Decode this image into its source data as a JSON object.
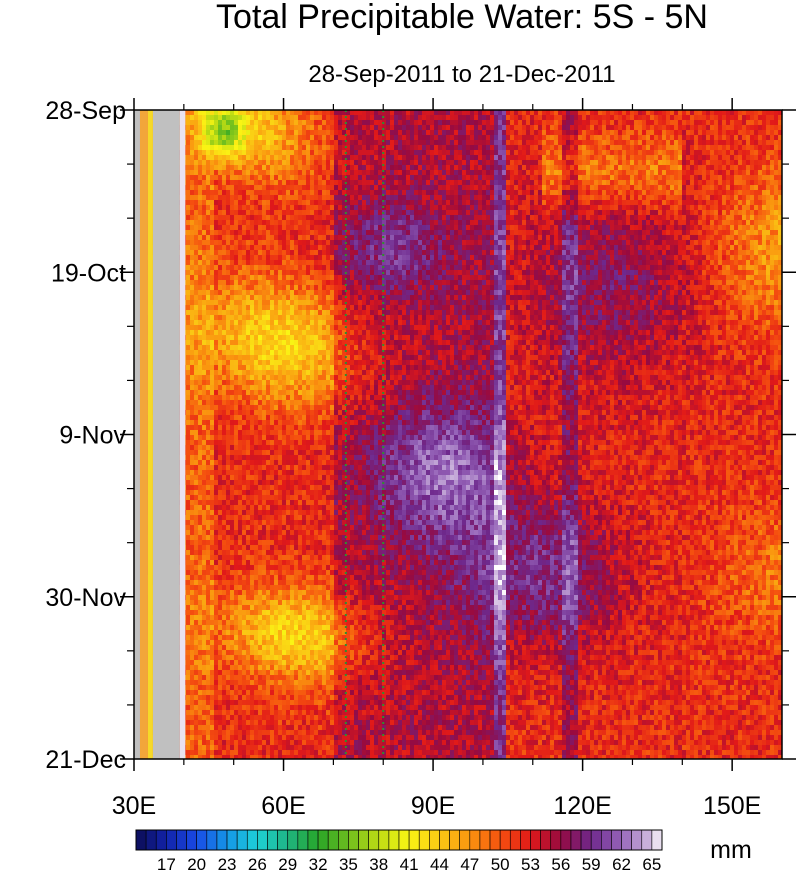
{
  "chart_data": {
    "type": "heatmap",
    "title": "Total Precipitable Water: 5S - 5N",
    "subtitle": "28-Sep-2011 to 21-Dec-2011",
    "x_axis": {
      "range": [
        30,
        160
      ],
      "units": "degrees longitude",
      "ticks": [
        30,
        60,
        90,
        120,
        150
      ],
      "tick_labels": [
        "30E",
        "60E",
        "90E",
        "120E",
        "150E"
      ]
    },
    "y_axis": {
      "range_days": [
        0,
        84
      ],
      "direction": "time increases downward",
      "ticks": [
        0,
        21,
        42,
        63,
        84
      ],
      "tick_labels": [
        "28-Sep",
        "19-Oct",
        "9-Nov",
        "30-Nov",
        "21-Dec"
      ]
    },
    "colorbar": {
      "units": "mm",
      "levels": [
        17,
        20,
        23,
        26,
        29,
        32,
        35,
        38,
        41,
        44,
        47,
        50,
        53,
        56,
        59,
        62,
        65
      ],
      "min": 14,
      "max": 66
    },
    "reference_lines": [
      {
        "longitude": 72.5,
        "style": "dotted",
        "color": "#2f8f2f"
      },
      {
        "longitude": 80,
        "style": "dotted",
        "color": "#2f8f2f"
      }
    ],
    "missing_land_band": {
      "lon_start": 33.8,
      "lon_end": 39.2,
      "color": "#c0c0c0"
    },
    "data_description": "Hovmoller of daily precipitable water averaged 5S-5N; 30-40E mostly land/missing; values ~45-65 mm elsewhere with eastward-propagating moist (purple) episodes and drier (yellow) phases near 40-70E"
  },
  "colors": {
    "background": "#ffffff",
    "missing": "#c0c0c0",
    "axis": "#000000"
  }
}
